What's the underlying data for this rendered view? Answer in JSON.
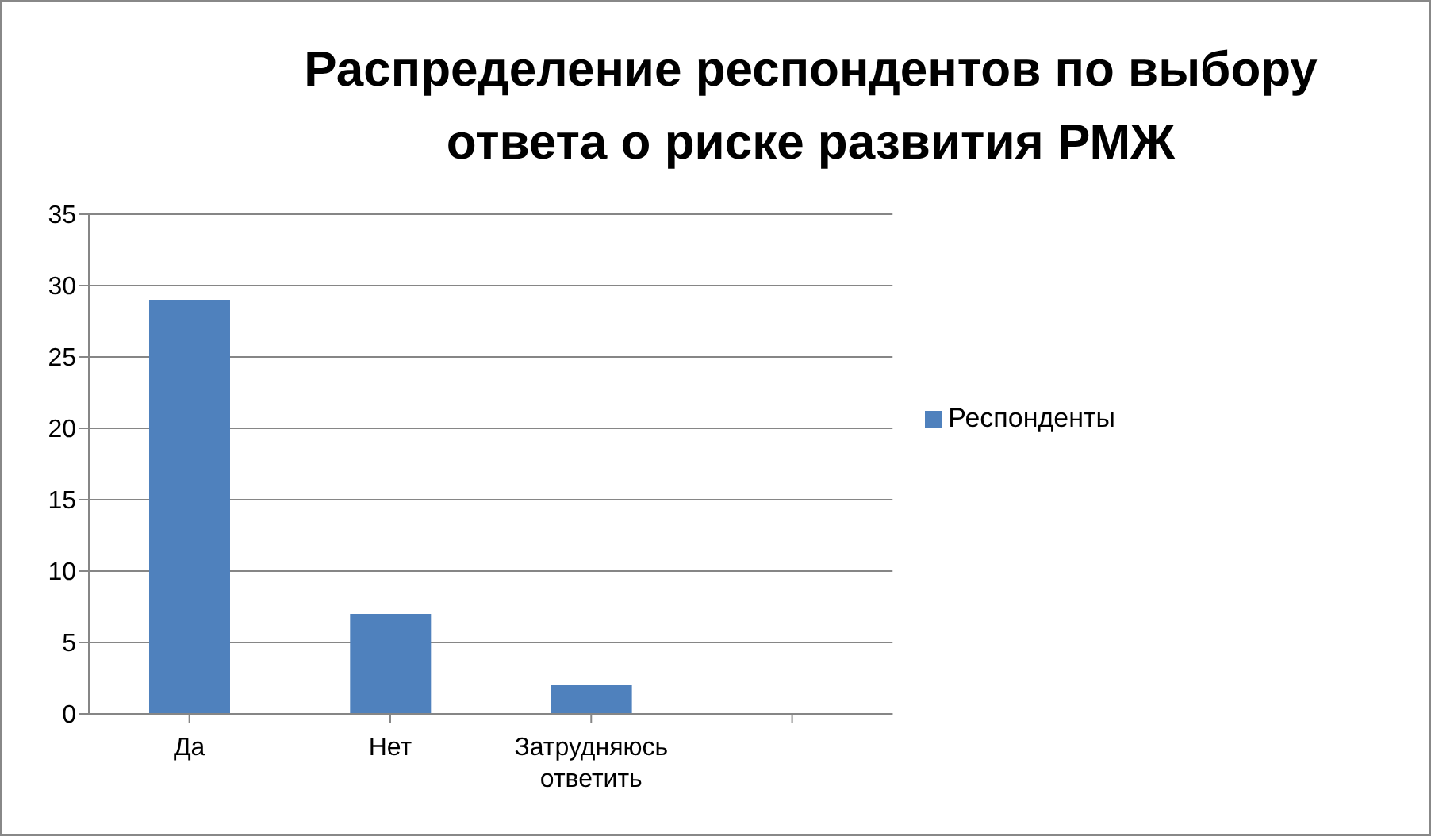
{
  "chart_data": {
    "type": "bar",
    "title": "Распределение респондентов по выбору ответа о риске развития РМЖ",
    "categories": [
      "Да",
      "Нет",
      "Затрудняюсь ответить",
      null
    ],
    "series": [
      {
        "name": "Респонденты",
        "color": "#4f81bd",
        "values": [
          29,
          7,
          2,
          null
        ]
      }
    ],
    "ylim": [
      0,
      35
    ],
    "yticks": [
      0,
      5,
      10,
      15,
      20,
      25,
      30,
      35
    ],
    "grid": "y",
    "legend": "right"
  }
}
